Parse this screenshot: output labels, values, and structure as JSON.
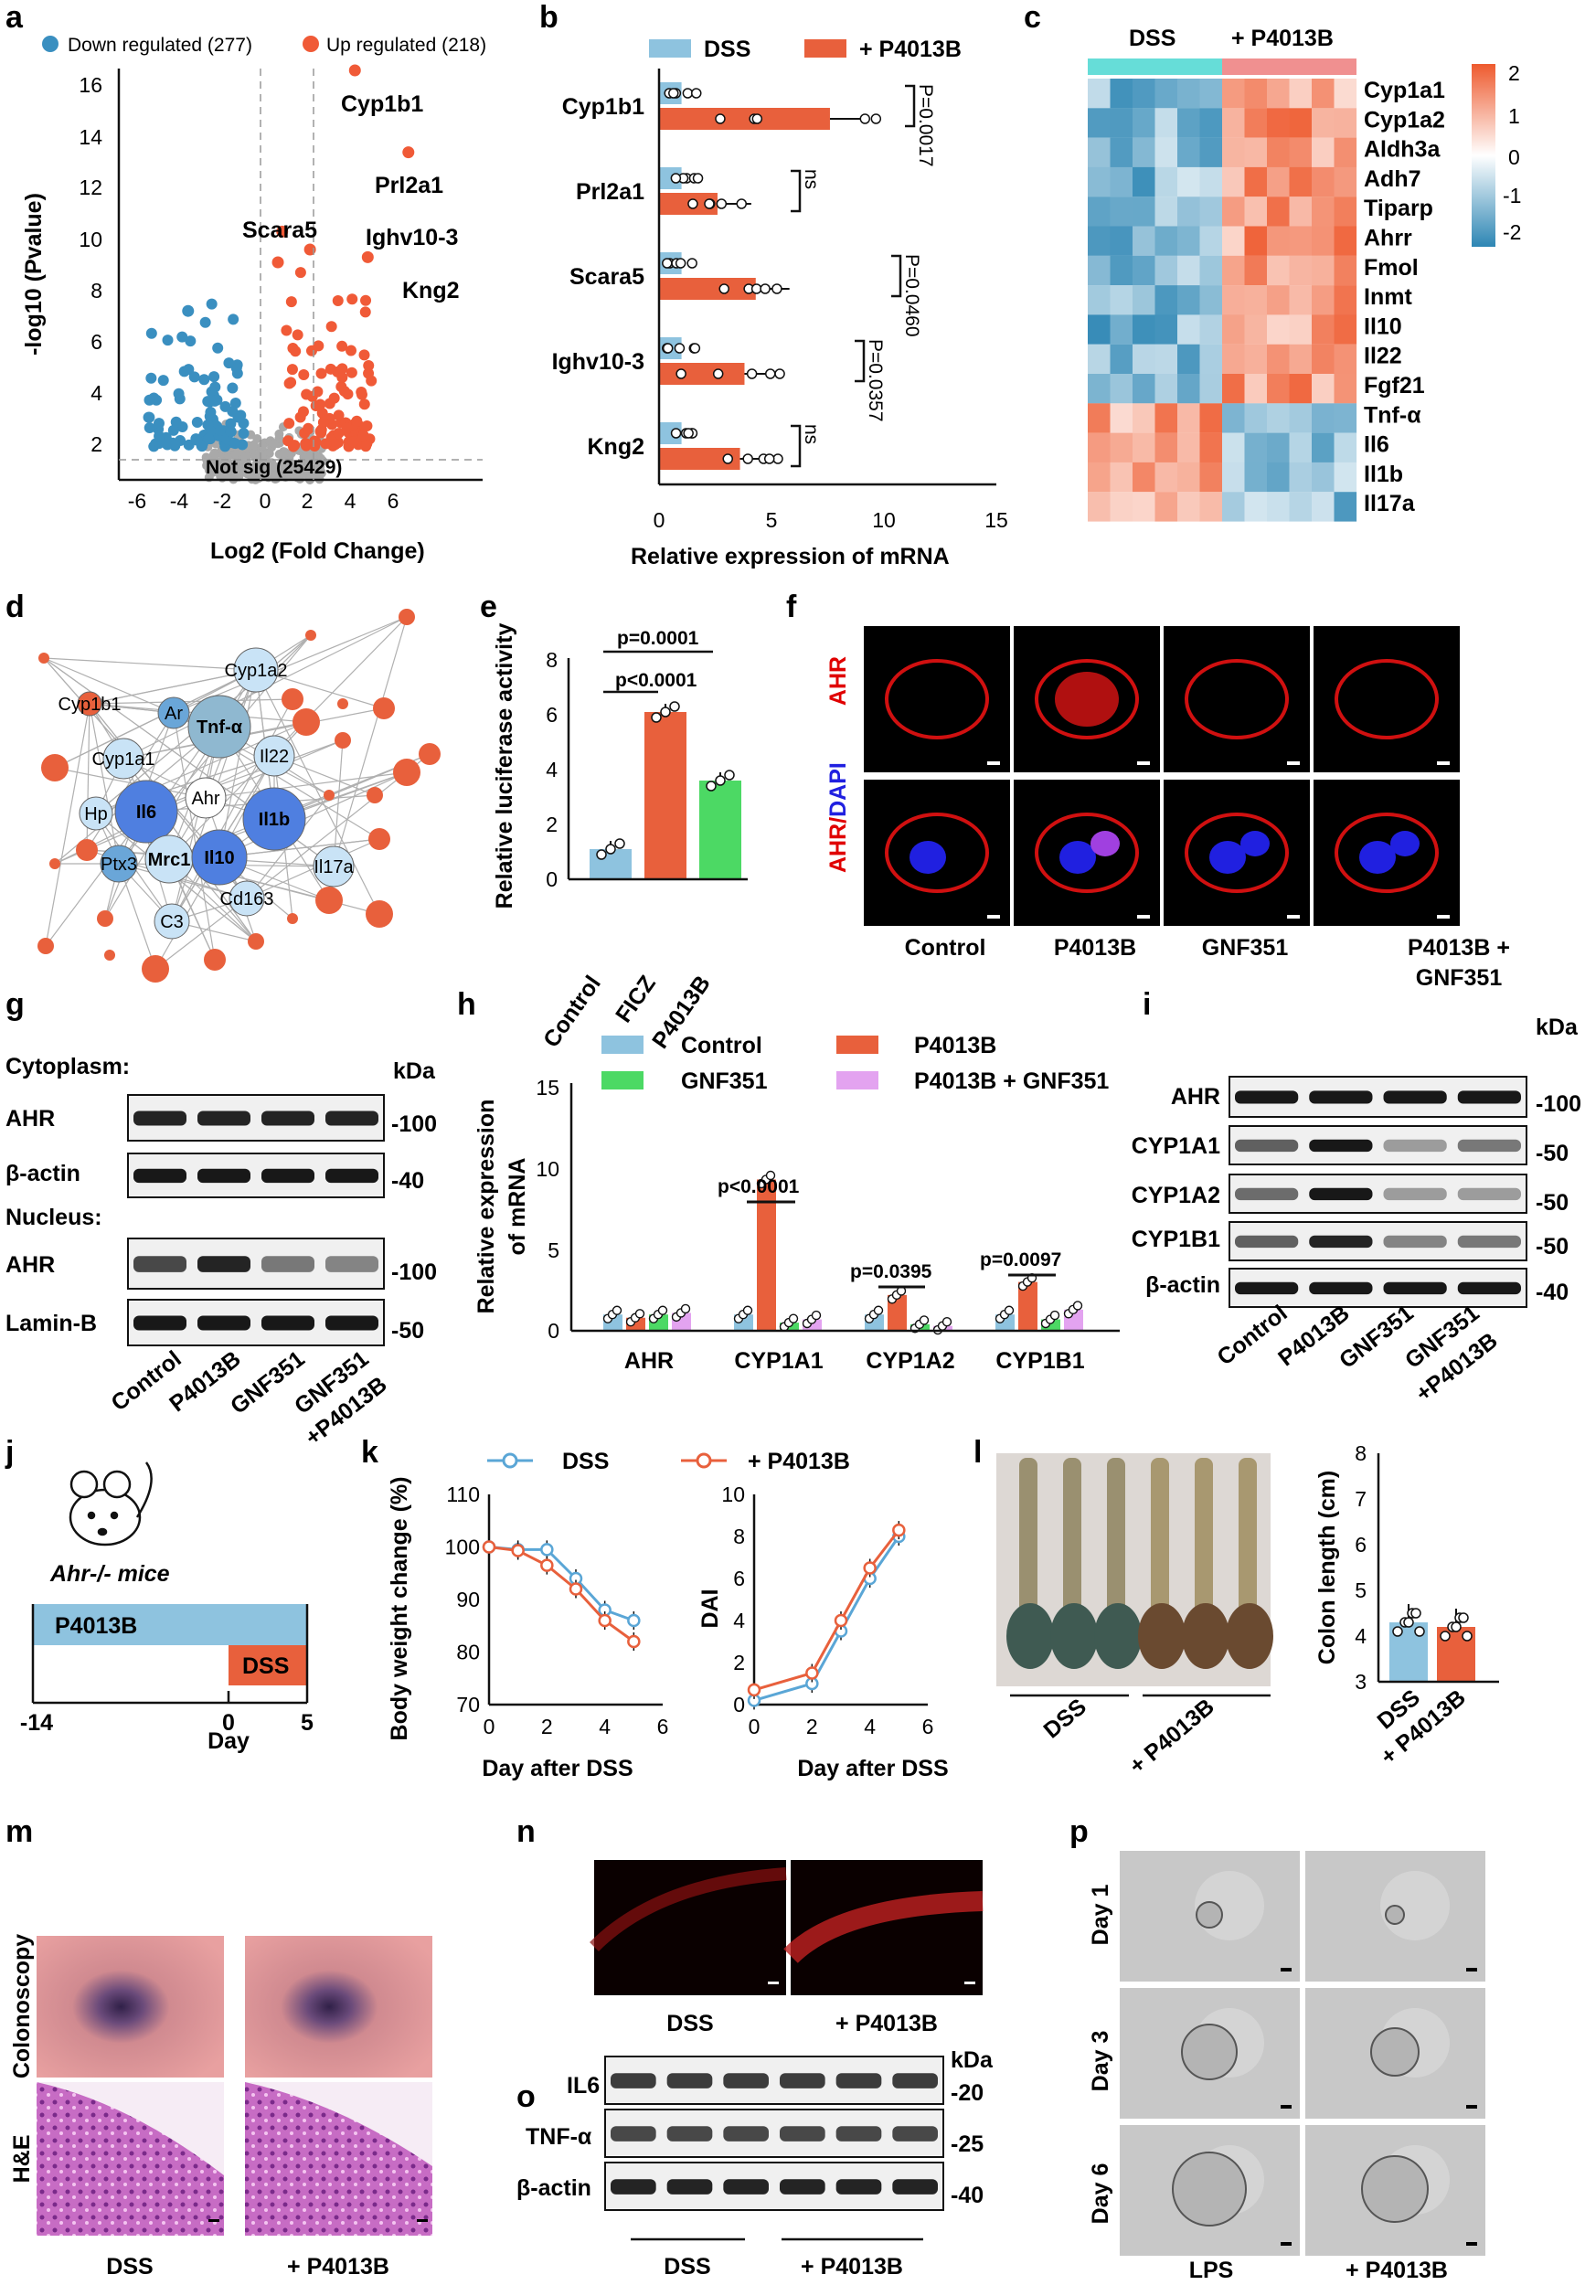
{
  "panels": {
    "a": {
      "letter": "a",
      "legend_down": "Down regulated (277)",
      "legend_up": "Up regulated (218)",
      "not_sig": "Not sig (25429)",
      "xlabel": "Log2 (Fold Change)",
      "ylabel": "-log10 (Pvalue)",
      "labels": [
        "Cyp1b1",
        "Prl2a1",
        "Scara5",
        "Ighv10-3",
        "Kng2"
      ]
    },
    "b": {
      "letter": "b",
      "legend_dss": "DSS",
      "legend_p": "+ P4013B",
      "xlabel": "Relative expression of mRNA",
      "pvals": [
        "P=0.0017",
        "ns",
        "P=0.0460",
        "P=0.0357",
        "ns"
      ]
    },
    "c": {
      "letter": "c",
      "group1": "DSS",
      "group2": "+ P4013B",
      "genes": [
        "Cyp1a1",
        "Cyp1a2",
        "Aldh3a",
        "Adh7",
        "Tiparp",
        "Ahrr",
        "Fmol",
        "Inmt",
        "Il10",
        "Il22",
        "Fgf21",
        "Tnf-α",
        "Il6",
        "Il1b",
        "Il17a"
      ],
      "scale": [
        "2",
        "1",
        "0",
        "-1",
        "-2"
      ]
    },
    "d": {
      "letter": "d",
      "nodes": [
        "Cyp1b1",
        "Cyp1a2",
        "Ar",
        "Tnf-α",
        "Cyp1a1",
        "Il22",
        "Hp",
        "Il6",
        "Ahr",
        "Il1b",
        "Ptx3",
        "Mrc1",
        "Il10",
        "Il17a",
        "Cd163",
        "C3"
      ]
    },
    "e": {
      "letter": "e",
      "ylabel": "Relative luciferase activity",
      "p1": "p=0.0001",
      "p2": "p<0.0001",
      "categories": [
        "Control",
        "FICZ",
        "P4013B"
      ]
    },
    "f": {
      "letter": "f",
      "row1": "AHR",
      "row2_a": "AHR/",
      "row2_b": "DAPI",
      "columns": [
        "Control",
        "P4013B",
        "GNF351",
        "P4013B +",
        "GNF351"
      ]
    },
    "g": {
      "letter": "g",
      "cytoplasm": "Cytoplasm:",
      "nucleus": "Nucleus:",
      "kda": "kDa",
      "bands": [
        "AHR",
        "β-actin",
        "AHR",
        "Lamin-B"
      ],
      "markers": [
        "-100",
        "-40",
        "-100",
        "-50"
      ],
      "lanes": [
        "Control",
        "P4013B",
        "GNF351",
        "GNF351",
        "+P4013B"
      ]
    },
    "h": {
      "letter": "h",
      "legend": [
        "Control",
        "P4013B",
        "GNF351",
        "P4013B + GNF351"
      ],
      "ylabel1": "Relative expression",
      "ylabel2": "of mRNA",
      "genes": [
        "AHR",
        "CYP1A1",
        "CYP1A2",
        "CYP1B1"
      ],
      "pvals": [
        "p<0.0001",
        "p=0.0395",
        "p=0.0097"
      ]
    },
    "i": {
      "letter": "i",
      "kda": "kDa",
      "bands": [
        "AHR",
        "CYP1A1",
        "CYP1A2",
        "CYP1B1",
        "β-actin"
      ],
      "markers": [
        "-100",
        "-50",
        "-50",
        "-50",
        "-40"
      ],
      "lanes": [
        "Control",
        "P4013B",
        "GNF351",
        "GNF351",
        "+P4013B"
      ]
    },
    "j": {
      "letter": "j",
      "mice": "Ahr-/- mice",
      "bar1": "P4013B",
      "bar2": "DSS",
      "ticks": [
        "-14",
        "0",
        "5"
      ],
      "xlabel": "Day"
    },
    "k": {
      "letter": "k",
      "legend_dss": "DSS",
      "legend_p": "+ P4013B",
      "ylabel1": "Body weight change (%)",
      "ylabel2": "DAI",
      "xlabel": "Day after DSS"
    },
    "l": {
      "letter": "l",
      "group1": "DSS",
      "group2": "+ P4013B",
      "ylabel": "Colon length (cm)",
      "cats": [
        "DSS",
        "+ P4013B"
      ]
    },
    "m": {
      "letter": "m",
      "row1": "Colonoscopy",
      "row2": "H&E",
      "cols": [
        "DSS",
        "+ P4013B"
      ]
    },
    "n": {
      "letter": "n",
      "cols": [
        "DSS",
        "+ P4013B"
      ]
    },
    "o": {
      "letter": "o",
      "kda": "kDa",
      "bands": [
        "IL6",
        "TNF-α",
        "β-actin"
      ],
      "markers": [
        "-20",
        "-25",
        "-40"
      ],
      "groups": [
        "DSS",
        "+ P4013B"
      ]
    },
    "p": {
      "letter": "p",
      "rows": [
        "Day 1",
        "Day 3",
        "Day 6"
      ],
      "cols": [
        "LPS",
        "+ P4013B"
      ]
    }
  },
  "chart_data": [
    {
      "type": "bar",
      "panel": "b",
      "categories": [
        "Cyp1b1",
        "Prl2a1",
        "Scara5",
        "Ighv10-3",
        "Kng2"
      ],
      "series": [
        {
          "name": "DSS",
          "values": [
            1.0,
            1.0,
            1.0,
            1.0,
            1.0
          ]
        },
        {
          "name": "+ P4013B",
          "values": [
            7.6,
            2.6,
            4.3,
            3.8,
            3.6
          ]
        }
      ],
      "xlabel": "Relative expression of mRNA",
      "xlim": [
        0,
        15
      ],
      "colors": {
        "DSS": "#8ec3df",
        "+ P4013B": "#e8603c"
      }
    },
    {
      "type": "bar",
      "panel": "e",
      "categories": [
        "Control",
        "FICZ",
        "P4013B"
      ],
      "values": [
        1.1,
        6.1,
        3.6
      ],
      "ylabel": "Relative luciferase activity",
      "ylim": [
        0,
        8
      ]
    },
    {
      "type": "bar",
      "panel": "h",
      "categories": [
        "AHR",
        "CYP1A1",
        "CYP1A2",
        "CYP1B1"
      ],
      "series": [
        {
          "name": "Control",
          "values": [
            1.0,
            1.0,
            1.0,
            1.0
          ]
        },
        {
          "name": "P4013B",
          "values": [
            0.8,
            9.3,
            2.2,
            3.0
          ]
        },
        {
          "name": "GNF351",
          "values": [
            1.0,
            0.5,
            0.4,
            0.7
          ]
        },
        {
          "name": "P4013B + GNF351",
          "values": [
            1.1,
            0.7,
            0.3,
            1.3
          ]
        }
      ],
      "ylim": [
        0,
        15
      ]
    },
    {
      "type": "line",
      "panel": "k-left",
      "x": [
        0,
        1,
        2,
        3,
        4,
        5
      ],
      "series": [
        {
          "name": "DSS",
          "values": [
            100,
            99.5,
            99.5,
            94,
            88,
            86
          ]
        },
        {
          "name": "+ P4013B",
          "values": [
            100,
            99.3,
            96.5,
            92,
            86,
            82
          ]
        }
      ],
      "xlabel": "Day after DSS",
      "ylabel": "Body weight change (%)",
      "xlim": [
        0,
        6
      ],
      "ylim": [
        70,
        110
      ]
    },
    {
      "type": "line",
      "panel": "k-right",
      "x": [
        0,
        2,
        3,
        4,
        5
      ],
      "series": [
        {
          "name": "DSS",
          "values": [
            0.2,
            1.0,
            3.5,
            6.0,
            8.0
          ]
        },
        {
          "name": "+ P4013B",
          "values": [
            0.7,
            1.5,
            4.0,
            6.5,
            8.3
          ]
        }
      ],
      "xlabel": "Day after DSS",
      "ylabel": "DAI",
      "xlim": [
        0,
        6
      ],
      "ylim": [
        0,
        10
      ]
    },
    {
      "type": "bar",
      "panel": "l",
      "categories": [
        "DSS",
        "+ P4013B"
      ],
      "values": [
        4.3,
        4.2
      ],
      "ylabel": "Colon length (cm)",
      "ylim": [
        3,
        8
      ]
    }
  ],
  "colors": {
    "blue": "#8ec3df",
    "orange": "#e8603c",
    "green": "#4cd964",
    "pink": "#e3a3f0",
    "volcano_down": "#3a8fc0",
    "volcano_up": "#f05a37"
  }
}
